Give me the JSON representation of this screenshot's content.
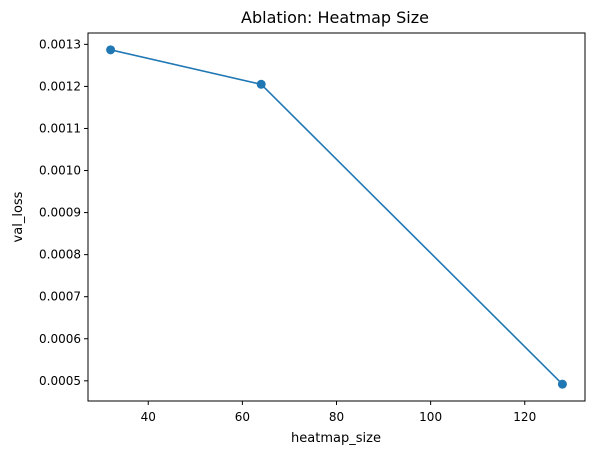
{
  "chart_data": {
    "type": "line",
    "title": "Ablation: Heatmap Size",
    "xlabel": "heatmap_size",
    "ylabel": "val_loss",
    "x": [
      32,
      64,
      128
    ],
    "series": [
      {
        "values": [
          0.001287,
          0.001205,
          0.000492
        ]
      }
    ],
    "xlim": [
      27.2,
      132.8
    ],
    "ylim": [
      0.000452,
      0.001327
    ],
    "xticks": [
      40,
      60,
      80,
      100,
      120
    ],
    "xtick_labels": [
      "40",
      "60",
      "80",
      "100",
      "120"
    ],
    "yticks": [
      0.0005,
      0.0006,
      0.0007,
      0.0008,
      0.0009,
      0.001,
      0.0011,
      0.0012,
      0.0013
    ],
    "ytick_labels": [
      "0.0005",
      "0.0006",
      "0.0007",
      "0.0008",
      "0.0009",
      "0.0010",
      "0.0011",
      "0.0012",
      "0.0013"
    ],
    "grid": false,
    "markers": "circle",
    "line_color": "#1f77b4"
  }
}
